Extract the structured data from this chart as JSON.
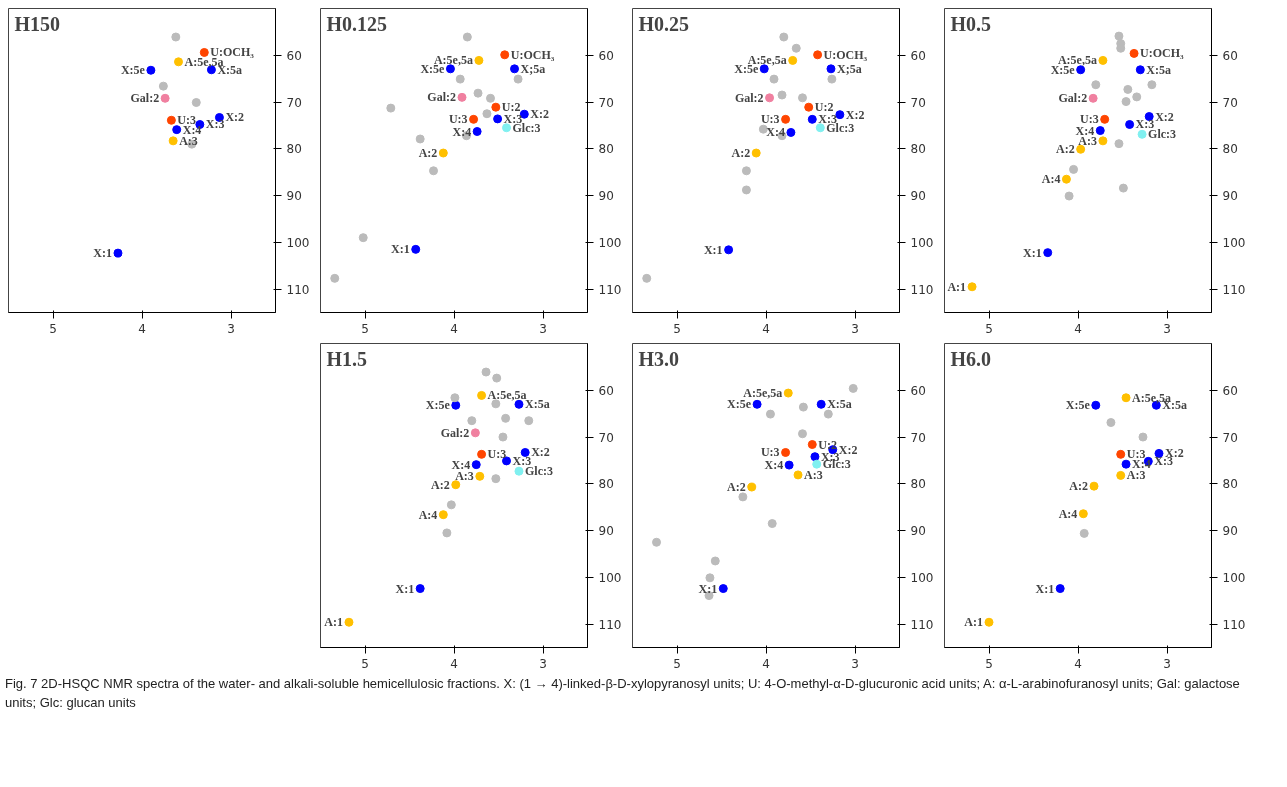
{
  "chart_data": [
    {
      "type": "scatter",
      "title": "H150",
      "xlim": [
        5.5,
        2.5
      ],
      "ylim": [
        115,
        50
      ],
      "xticks": [
        5,
        4,
        3
      ],
      "yticks": [
        60,
        70,
        80,
        90,
        100,
        110
      ],
      "grid": false,
      "series": [
        {
          "color": "#0000ff",
          "x": [
            3.9,
            3.22,
            3.13,
            3.61,
            3.35,
            4.27
          ],
          "values": [
            63.2,
            63.1,
            73.3,
            75.9,
            74.8,
            102.3
          ]
        },
        {
          "color": "#ffc000",
          "x": [
            3.59,
            3.65
          ],
          "values": [
            61.4,
            78.3
          ]
        },
        {
          "color": "#ff4500",
          "x": [
            3.3,
            3.67
          ],
          "values": [
            59.4,
            73.9
          ]
        },
        {
          "color": "#f080a0",
          "x": [
            3.74
          ],
          "values": [
            69.2
          ]
        },
        {
          "color": "#bbbbbb",
          "x": [
            3.62,
            3.76,
            3.39,
            3.44
          ],
          "values": [
            56.1,
            66.6,
            70.1,
            79.0
          ]
        }
      ],
      "annotations": [
        {
          "text": "A:5e,5a",
          "x": 3.59,
          "y": 61.4
        },
        {
          "text": "U:OCH₃",
          "x": 3.3,
          "y": 59.4
        },
        {
          "text": "X:5e",
          "x": 3.9,
          "y": 63.2
        },
        {
          "text": "X:5a",
          "x": 3.22,
          "y": 63.1
        },
        {
          "text": "Gal:2",
          "x": 3.74,
          "y": 69.2
        },
        {
          "text": "X:2",
          "x": 3.13,
          "y": 73.3
        },
        {
          "text": "U:3",
          "x": 3.67,
          "y": 73.9
        },
        {
          "text": "X:4",
          "x": 3.61,
          "y": 75.9
        },
        {
          "text": "X:3",
          "x": 3.35,
          "y": 74.8
        },
        {
          "text": "A:3",
          "x": 3.65,
          "y": 78.3
        },
        {
          "text": "X:1",
          "x": 4.27,
          "y": 102.3
        },
        "Fig. 7 2D-HSQC NMR spectra of the water- and alkali-soluble hemicellulosic fractions. X: (1 → 4)-linked-β-D-xylopyranosyl units; U: 4-O-methyl-α-D-glucuronic acid units; A: α-L-arabinofuranosyl units; Gal: galactose units; Glc: glucan units"
      ]
    },
    {
      "type": "scatter",
      "title": "H0.125",
      "xlim": [
        5.5,
        2.5
      ],
      "ylim": [
        115,
        50
      ],
      "xticks": [
        5,
        4,
        3
      ],
      "yticks": [
        60,
        70,
        80,
        90,
        100,
        110
      ],
      "grid": false,
      "series": [
        {
          "color": "#0000ff",
          "x": [
            4.04,
            3.32,
            3.21,
            3.51,
            3.74,
            4.43
          ],
          "values": [
            62.9,
            62.9,
            72.6,
            73.6,
            76.3,
            101.5
          ]
        },
        {
          "color": "#ffc000",
          "x": [
            3.72,
            4.12
          ],
          "values": [
            61.1,
            80.9
          ]
        },
        {
          "color": "#ff4500",
          "x": [
            3.43,
            3.53,
            3.78
          ],
          "values": [
            59.9,
            71.1,
            73.7
          ]
        },
        {
          "color": "#f080a0",
          "x": [
            3.91
          ],
          "values": [
            69.0
          ]
        },
        {
          "color": "#80f0f0",
          "x": [
            3.41
          ],
          "values": [
            75.5
          ]
        },
        {
          "color": "#bbbbbb",
          "x": [
            3.85,
            3.93,
            3.28,
            3.73,
            3.59,
            4.71,
            3.63,
            3.86,
            4.38,
            4.23,
            5.02,
            5.34
          ],
          "values": [
            56.1,
            65.1,
            65.1,
            68.1,
            69.2,
            71.3,
            72.5,
            77.2,
            77.9,
            84.7,
            99.0,
            107.7
          ]
        }
      ],
      "annotations": [
        {
          "text": "U:OCH₃",
          "x": 3.43,
          "y": 59.9
        },
        {
          "text": "A:5e,5a",
          "x": 3.72,
          "y": 61.1
        },
        {
          "text": "X:5e",
          "x": 4.04,
          "y": 62.9
        },
        {
          "text": "X;5a",
          "x": 3.32,
          "y": 62.9
        },
        {
          "text": "Gal:2",
          "x": 3.91,
          "y": 69.0
        },
        {
          "text": "U:2",
          "x": 3.53,
          "y": 71.1
        },
        {
          "text": "U:3",
          "x": 3.78,
          "y": 73.7
        },
        {
          "text": "X:2",
          "x": 3.21,
          "y": 72.6
        },
        {
          "text": "X:3",
          "x": 3.51,
          "y": 73.6
        },
        {
          "text": "Glc:3",
          "x": 3.41,
          "y": 75.5
        },
        {
          "text": "X:4",
          "x": 3.74,
          "y": 76.3
        },
        {
          "text": "A:2",
          "x": 4.12,
          "y": 80.9
        },
        {
          "text": "X:1",
          "x": 4.43,
          "y": 101.5
        }
      ]
    },
    {
      "type": "scatter",
      "title": "H0.25",
      "xlim": [
        5.5,
        2.5
      ],
      "ylim": [
        115,
        50
      ],
      "xticks": [
        5,
        4,
        3
      ],
      "yticks": [
        60,
        70,
        80,
        90,
        100,
        110
      ],
      "grid": false,
      "series": [
        {
          "color": "#0000ff",
          "x": [
            4.02,
            3.27,
            3.17,
            3.48,
            3.72,
            4.42
          ],
          "values": [
            62.9,
            62.9,
            72.7,
            73.7,
            76.5,
            101.6
          ]
        },
        {
          "color": "#ffc000",
          "x": [
            3.7,
            4.11
          ],
          "values": [
            61.1,
            80.9
          ]
        },
        {
          "color": "#ff4500",
          "x": [
            3.42,
            3.52,
            3.78
          ],
          "values": [
            59.9,
            71.1,
            73.7
          ]
        },
        {
          "color": "#f080a0",
          "x": [
            3.96
          ],
          "values": [
            69.1
          ]
        },
        {
          "color": "#80f0f0",
          "x": [
            3.39
          ],
          "values": [
            75.5
          ]
        },
        {
          "color": "#bbbbbb",
          "x": [
            3.8,
            3.66,
            3.91,
            3.26,
            3.82,
            3.59,
            4.03,
            3.82,
            4.22,
            4.22,
            5.34
          ],
          "values": [
            56.1,
            58.5,
            65.1,
            65.1,
            68.5,
            69.1,
            75.8,
            77.2,
            84.7,
            88.8,
            107.7
          ]
        }
      ],
      "annotations": [
        {
          "text": "U:OCH₃",
          "x": 3.42,
          "y": 59.9
        },
        {
          "text": "A:5e,5a",
          "x": 3.7,
          "y": 61.1
        },
        {
          "text": "X:5e",
          "x": 4.02,
          "y": 62.9
        },
        {
          "text": "X;5a",
          "x": 3.27,
          "y": 62.9
        },
        {
          "text": "Gal:2",
          "x": 3.96,
          "y": 69.1
        },
        {
          "text": "U:2",
          "x": 3.52,
          "y": 71.1
        },
        {
          "text": "U:3",
          "x": 3.78,
          "y": 73.7
        },
        {
          "text": "X:2",
          "x": 3.17,
          "y": 72.7
        },
        {
          "text": "X:3",
          "x": 3.48,
          "y": 73.7
        },
        {
          "text": "Glc:3",
          "x": 3.39,
          "y": 75.5
        },
        {
          "text": "X:4",
          "x": 3.72,
          "y": 76.5
        },
        {
          "text": "A:2",
          "x": 4.11,
          "y": 80.9
        },
        {
          "text": "X:1",
          "x": 4.42,
          "y": 101.6
        }
      ]
    },
    {
      "type": "scatter",
      "title": "H0.5",
      "xlim": [
        5.5,
        2.5
      ],
      "ylim": [
        115,
        50
      ],
      "xticks": [
        5,
        4,
        3
      ],
      "yticks": [
        60,
        70,
        80,
        90,
        100,
        110
      ],
      "grid": false,
      "series": [
        {
          "color": "#0000ff",
          "x": [
            3.97,
            3.3,
            3.2,
            3.42,
            3.75,
            4.34
          ],
          "values": [
            63.1,
            63.1,
            73.1,
            74.8,
            76.1,
            102.2
          ]
        },
        {
          "color": "#ffc000",
          "x": [
            3.72,
            3.72,
            3.97,
            4.13,
            5.19
          ],
          "values": [
            61.1,
            78.3,
            80.1,
            86.5,
            109.5
          ]
        },
        {
          "color": "#ff4500",
          "x": [
            3.37,
            3.7
          ],
          "values": [
            59.6,
            73.7
          ]
        },
        {
          "color": "#f080a0",
          "x": [
            3.83
          ],
          "values": [
            69.2
          ]
        },
        {
          "color": "#80f0f0",
          "x": [
            3.28
          ],
          "values": [
            76.9
          ]
        },
        {
          "color": "#bbbbbb",
          "x": [
            3.54,
            3.52,
            3.52,
            3.8,
            3.17,
            3.44,
            3.46,
            3.34,
            3.54,
            4.05,
            3.49,
            4.1
          ],
          "values": [
            55.9,
            57.5,
            58.5,
            66.3,
            66.3,
            67.3,
            69.9,
            68.9,
            78.9,
            84.4,
            88.4,
            90.1
          ]
        }
      ],
      "annotations": [
        {
          "text": "U:OCH₃",
          "x": 3.37,
          "y": 59.6
        },
        {
          "text": "A:5e,5a",
          "x": 3.72,
          "y": 61.1
        },
        {
          "text": "X:5e",
          "x": 3.97,
          "y": 63.1
        },
        {
          "text": "X:5a",
          "x": 3.3,
          "y": 63.1
        },
        {
          "text": "Gal:2",
          "x": 3.83,
          "y": 69.2
        },
        {
          "text": "U:3",
          "x": 3.7,
          "y": 73.7
        },
        {
          "text": "X:2",
          "x": 3.2,
          "y": 73.1
        },
        {
          "text": "X:3",
          "x": 3.42,
          "y": 74.8
        },
        {
          "text": "X:4",
          "x": 3.75,
          "y": 76.1
        },
        {
          "text": "Glc:3",
          "x": 3.28,
          "y": 76.9
        },
        {
          "text": "A:3",
          "x": 3.72,
          "y": 78.3
        },
        {
          "text": "A:2",
          "x": 3.97,
          "y": 80.1
        },
        {
          "text": "A:4",
          "x": 4.13,
          "y": 86.5
        },
        {
          "text": "X:1",
          "x": 4.34,
          "y": 102.2
        },
        {
          "text": "A:1",
          "x": 5.19,
          "y": 109.5
        }
      ]
    },
    {
      "type": "scatter",
      "title": "H1.5",
      "xlim": [
        5.5,
        2.5
      ],
      "ylim": [
        115,
        50
      ],
      "xticks": [
        5,
        4,
        3
      ],
      "yticks": [
        60,
        70,
        80,
        90,
        100,
        110
      ],
      "grid": false,
      "series": [
        {
          "color": "#0000ff",
          "x": [
            3.98,
            3.27,
            3.2,
            3.41,
            3.75,
            4.38
          ],
          "values": [
            63.2,
            63.0,
            73.3,
            75.1,
            75.9,
            102.4
          ]
        },
        {
          "color": "#ffc000",
          "x": [
            3.69,
            3.71,
            3.98,
            4.12,
            5.18
          ],
          "values": [
            61.1,
            78.4,
            80.2,
            86.6,
            109.6
          ]
        },
        {
          "color": "#ff4500",
          "x": [
            3.69
          ],
          "values": [
            73.7
          ]
        },
        {
          "color": "#f080a0",
          "x": [
            3.76
          ],
          "values": [
            69.1
          ]
        },
        {
          "color": "#80f0f0",
          "x": [
            3.27
          ],
          "values": [
            77.3
          ]
        },
        {
          "color": "#bbbbbb",
          "x": [
            3.64,
            3.52,
            3.99,
            3.53,
            3.8,
            3.42,
            3.16,
            3.45,
            3.53,
            4.03,
            4.08
          ],
          "values": [
            56.1,
            57.4,
            61.6,
            62.9,
            66.5,
            66.0,
            66.5,
            70.0,
            78.9,
            84.5,
            90.5
          ]
        }
      ],
      "annotations": [
        {
          "text": "A:5e,5a",
          "x": 3.69,
          "y": 61.1
        },
        {
          "text": "X:5e",
          "x": 3.98,
          "y": 63.2
        },
        {
          "text": "X:5a",
          "x": 3.27,
          "y": 63.0
        },
        {
          "text": "Gal:2",
          "x": 3.76,
          "y": 69.1
        },
        {
          "text": "U:3",
          "x": 3.69,
          "y": 73.7
        },
        {
          "text": "X:2",
          "x": 3.2,
          "y": 73.3
        },
        {
          "text": "X:3",
          "x": 3.41,
          "y": 75.1
        },
        {
          "text": "X:4",
          "x": 3.75,
          "y": 75.9
        },
        {
          "text": "Glc:3",
          "x": 3.27,
          "y": 77.3
        },
        {
          "text": "A:3",
          "x": 3.71,
          "y": 78.4
        },
        {
          "text": "A:2",
          "x": 3.98,
          "y": 80.2
        },
        {
          "text": "A:4",
          "x": 4.12,
          "y": 86.6
        },
        {
          "text": "X:1",
          "x": 4.38,
          "y": 102.4
        },
        {
          "text": "A:1",
          "x": 5.18,
          "y": 109.6
        }
      ]
    },
    {
      "type": "scatter",
      "title": "H3.0",
      "xlim": [
        5.5,
        2.5
      ],
      "ylim": [
        115,
        50
      ],
      "xticks": [
        5,
        4,
        3
      ],
      "yticks": [
        60,
        70,
        80,
        90,
        100,
        110
      ],
      "grid": false,
      "series": [
        {
          "color": "#0000ff",
          "x": [
            4.1,
            3.38,
            3.25,
            3.45,
            3.74,
            4.48
          ],
          "values": [
            63.0,
            63.0,
            72.7,
            74.2,
            76.0,
            102.4
          ]
        },
        {
          "color": "#ffc000",
          "x": [
            3.75,
            3.64,
            4.16
          ],
          "values": [
            60.6,
            78.1,
            80.7
          ]
        },
        {
          "color": "#ff4500",
          "x": [
            3.48,
            3.78
          ],
          "values": [
            71.6,
            73.3
          ]
        },
        {
          "color": "#80f0f0",
          "x": [
            3.43
          ],
          "values": [
            75.8
          ]
        },
        {
          "color": "#bbbbbb",
          "x": [
            3.02,
            3.58,
            3.95,
            3.3,
            3.59,
            4.26,
            3.93,
            5.23,
            4.57,
            4.63,
            4.64
          ],
          "values": [
            59.6,
            63.6,
            65.1,
            65.1,
            69.3,
            82.8,
            88.5,
            92.5,
            96.5,
            100.1,
            103.9
          ]
        }
      ],
      "annotations": [
        {
          "text": "A:5e,5a",
          "x": 3.75,
          "y": 60.6
        },
        {
          "text": "X:5e",
          "x": 4.1,
          "y": 63.0
        },
        {
          "text": "X:5a",
          "x": 3.38,
          "y": 63.0
        },
        {
          "text": "U:2",
          "x": 3.48,
          "y": 71.6
        },
        {
          "text": "U:3",
          "x": 3.78,
          "y": 73.3
        },
        {
          "text": "X:2",
          "x": 3.25,
          "y": 72.7
        },
        {
          "text": "X:3",
          "x": 3.45,
          "y": 74.2
        },
        {
          "text": "X:4",
          "x": 3.74,
          "y": 76.0
        },
        {
          "text": "Glc:3",
          "x": 3.43,
          "y": 75.8
        },
        {
          "text": "A:3",
          "x": 3.64,
          "y": 78.1
        },
        {
          "text": "A:2",
          "x": 4.16,
          "y": 80.7
        },
        {
          "text": "X:1",
          "x": 4.48,
          "y": 102.4
        }
      ]
    },
    {
      "type": "scatter",
      "title": "H6.0",
      "xlim": [
        5.5,
        2.5
      ],
      "ylim": [
        115,
        50
      ],
      "xticks": [
        5,
        4,
        3
      ],
      "yticks": [
        60,
        70,
        80,
        90,
        100,
        110
      ],
      "grid": false,
      "series": [
        {
          "color": "#0000ff",
          "x": [
            3.8,
            3.12,
            3.09,
            3.21,
            3.46,
            4.2
          ],
          "values": [
            63.2,
            63.2,
            73.5,
            75.2,
            75.8,
            102.4
          ]
        },
        {
          "color": "#ffc000",
          "x": [
            3.46,
            3.52,
            3.82,
            3.94,
            5.0
          ],
          "values": [
            61.6,
            78.2,
            80.5,
            86.4,
            109.6
          ]
        },
        {
          "color": "#ff4500",
          "x": [
            3.52
          ],
          "values": [
            73.7
          ]
        },
        {
          "color": "#bbbbbb",
          "x": [
            3.63,
            3.27,
            3.93
          ],
          "values": [
            66.9,
            70.0,
            90.6
          ]
        }
      ],
      "annotations": [
        {
          "text": "A:5e,5a",
          "x": 3.46,
          "y": 61.6
        },
        {
          "text": "X:5e",
          "x": 3.8,
          "y": 63.2
        },
        {
          "text": "X:5a",
          "x": 3.12,
          "y": 63.2
        },
        {
          "text": "U:3",
          "x": 3.52,
          "y": 73.7
        },
        {
          "text": "X:2",
          "x": 3.09,
          "y": 73.5
        },
        {
          "text": "X:3",
          "x": 3.21,
          "y": 75.2
        },
        {
          "text": "X:4",
          "x": 3.46,
          "y": 75.8
        },
        {
          "text": "A:3",
          "x": 3.52,
          "y": 78.2
        },
        {
          "text": "A:2",
          "x": 3.82,
          "y": 80.5
        },
        {
          "text": "A:4",
          "x": 3.94,
          "y": 86.4
        },
        {
          "text": "X:1",
          "x": 4.2,
          "y": 102.4
        },
        {
          "text": "A:1",
          "x": 5.0,
          "y": 109.6
        }
      ]
    }
  ]
}
